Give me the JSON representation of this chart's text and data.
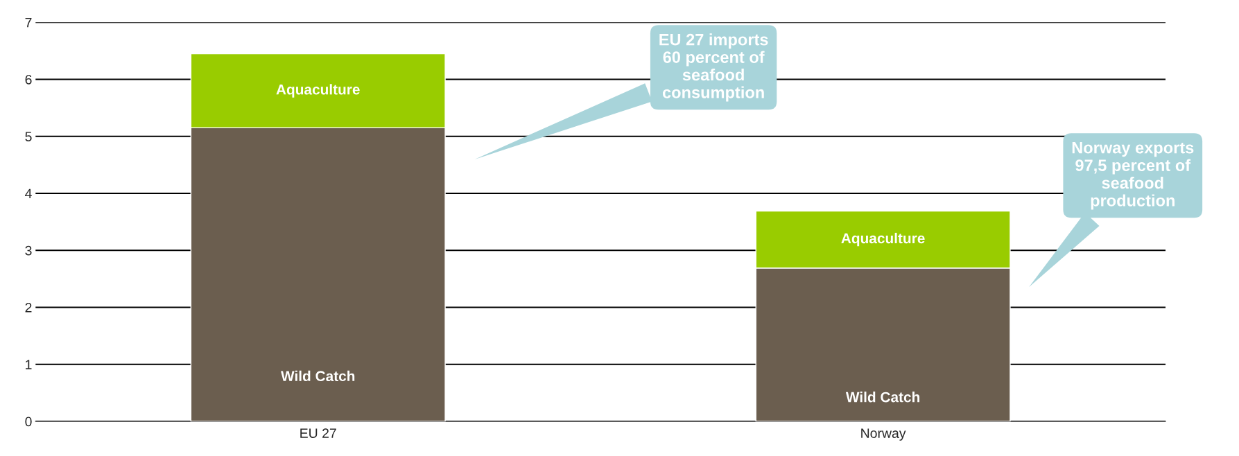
{
  "chart_data": {
    "type": "bar",
    "stacked": true,
    "categories": [
      "EU 27",
      "Norway"
    ],
    "series": [
      {
        "name": "Wild Catch",
        "color": "#6b5e4f",
        "values": [
          5.15,
          2.69
        ]
      },
      {
        "name": "Aquaculture",
        "color": "#99cc00",
        "values": [
          1.3,
          1.0
        ]
      }
    ],
    "ylim": [
      0,
      7
    ],
    "yticks": [
      0,
      1,
      2,
      3,
      4,
      5,
      6,
      7
    ],
    "grid": "y",
    "legend": false,
    "annotations": [
      "EU 27 imports\n60 percent of\nseafood\nconsumption",
      "Norway exports\n97,5 percent of\nseafood\nproduction"
    ]
  }
}
